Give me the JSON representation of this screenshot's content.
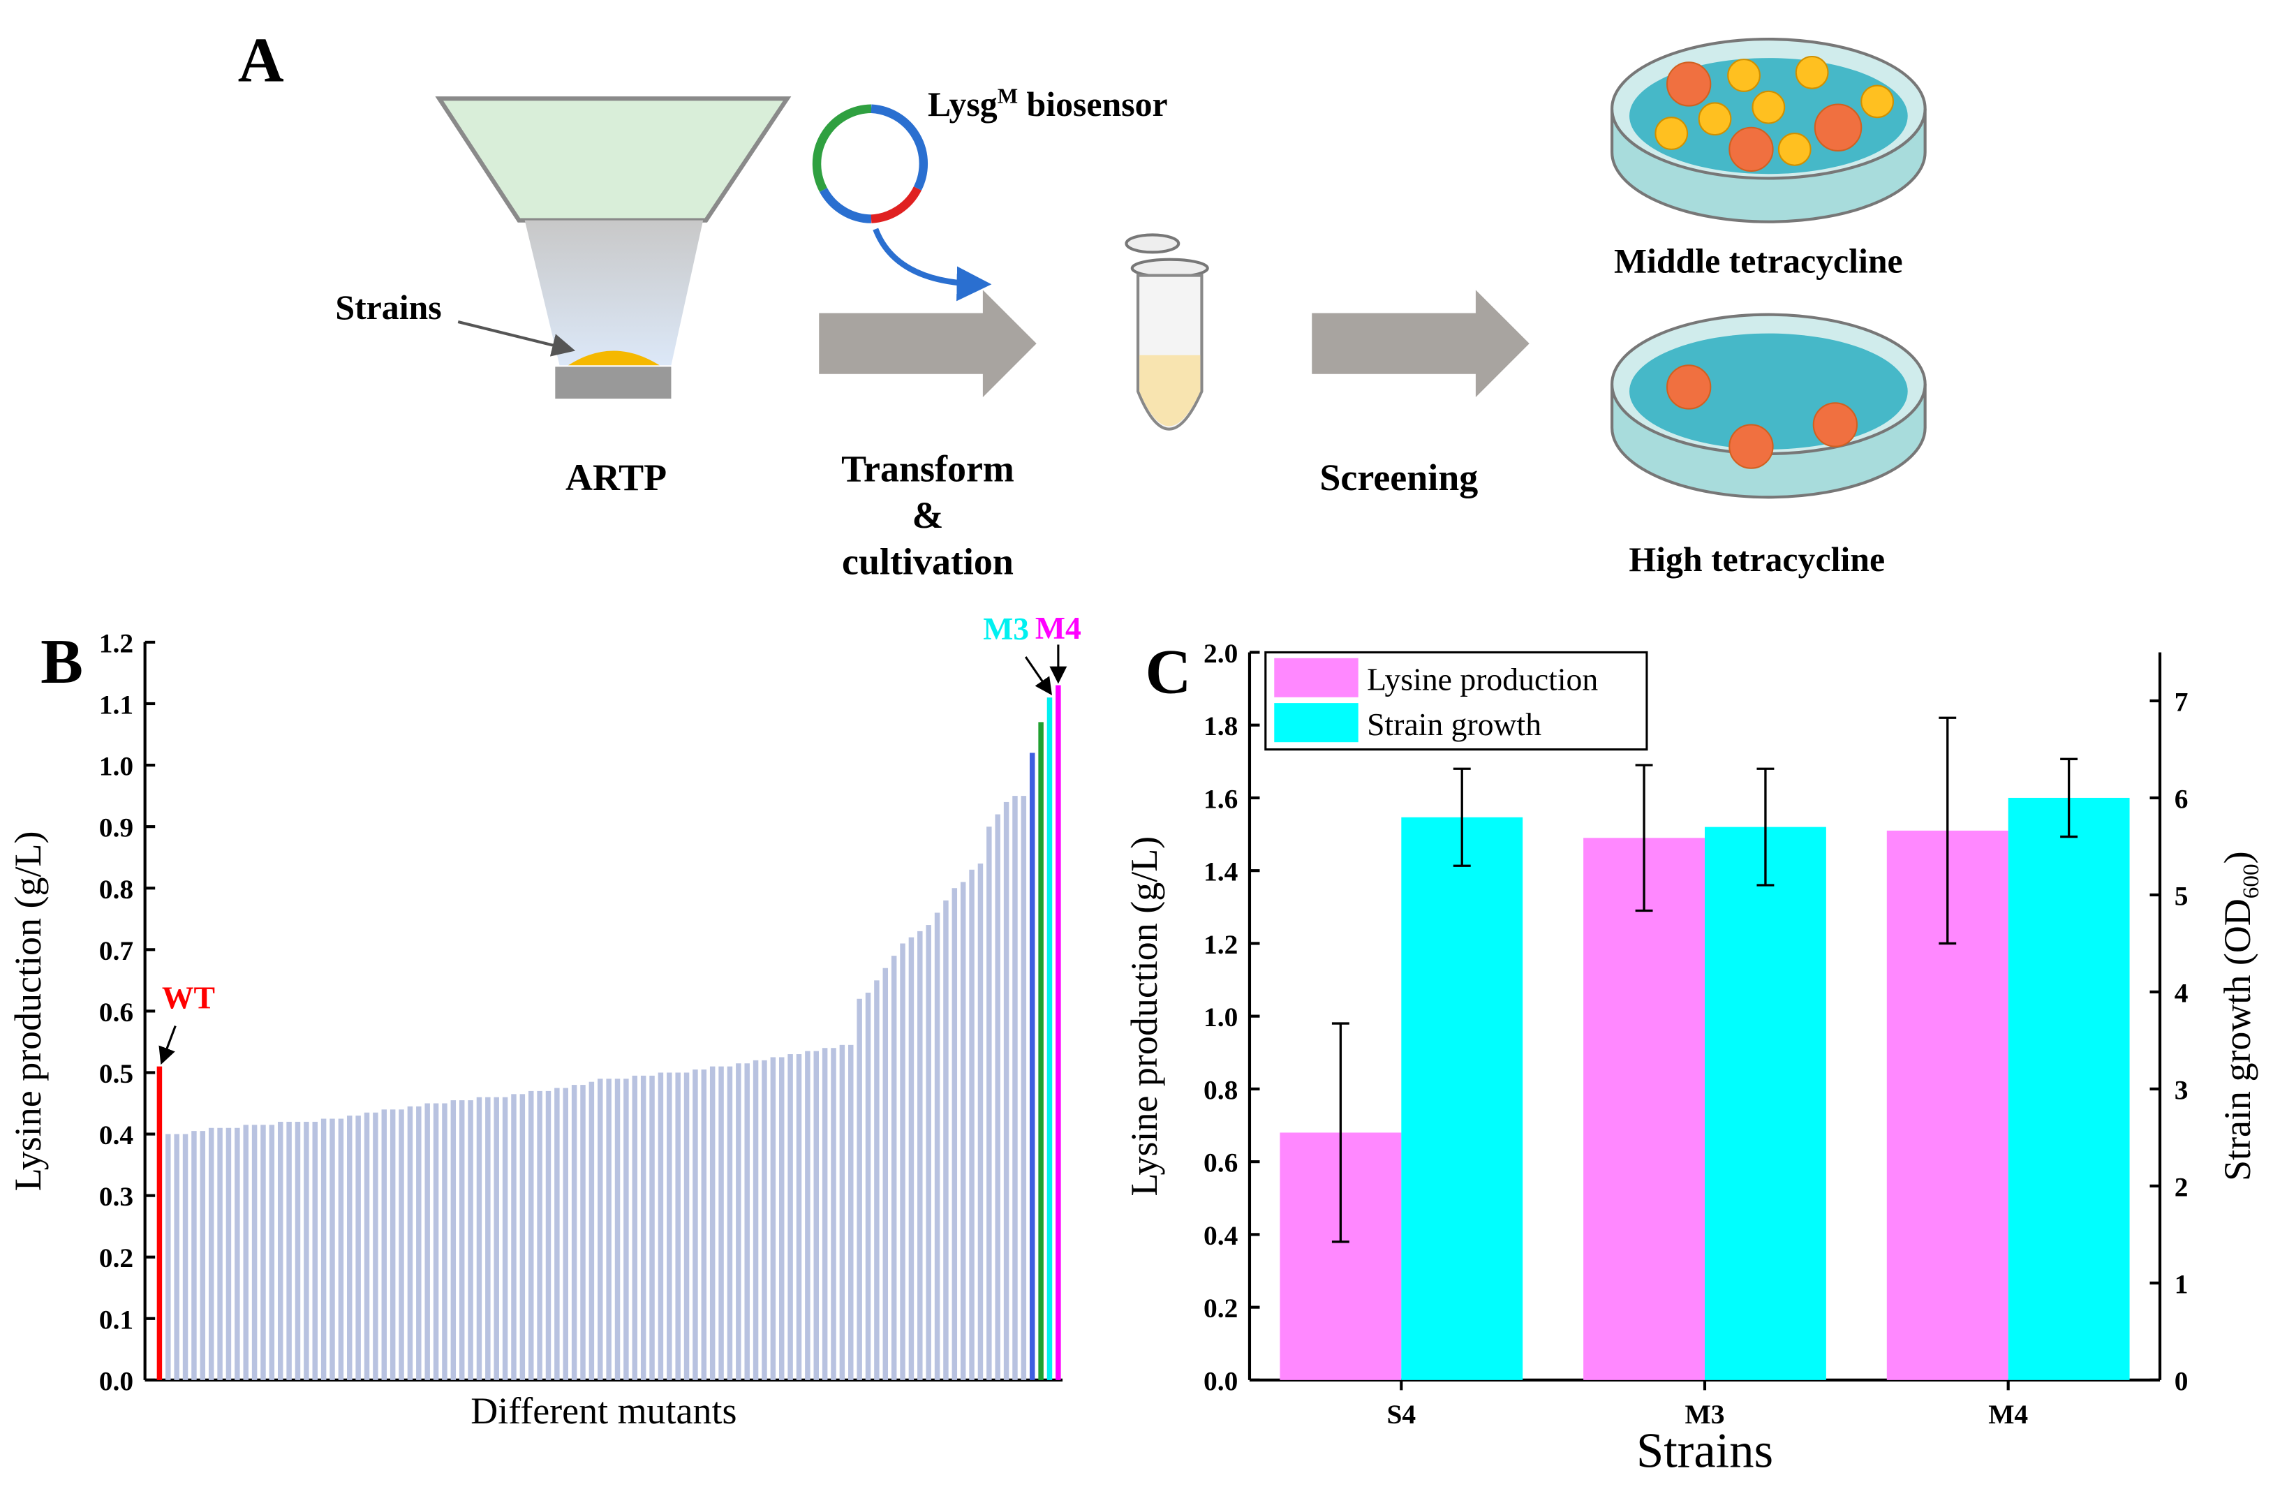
{
  "diagram": {
    "panel": "A",
    "strains_label": "Strains",
    "artp_label": "ARTP",
    "plasmid_label": [
      "Lysg",
      "M",
      " biosensor"
    ],
    "transform_label": [
      "Transform",
      "&",
      "cultivation"
    ],
    "screening_label": "Screening",
    "middle_label": "Middle tetracycline",
    "high_label": "High tetracycline"
  },
  "chart_data": [
    {
      "type": "bar",
      "panel": "B",
      "ylabel": "Lysine production (g/L)",
      "xlabel": "Different mutants",
      "categories": [
        "WT",
        null,
        null,
        null,
        null,
        null,
        null,
        null,
        null,
        null,
        null,
        null,
        null,
        null,
        null,
        null,
        null,
        null,
        null,
        null,
        null,
        null,
        null,
        null,
        null,
        null,
        null,
        null,
        null,
        null,
        null,
        null,
        null,
        null,
        null,
        null,
        null,
        null,
        null,
        null,
        null,
        null,
        null,
        null,
        null,
        null,
        null,
        null,
        null,
        null,
        null,
        null,
        null,
        null,
        null,
        null,
        null,
        null,
        null,
        null,
        null,
        null,
        null,
        null,
        null,
        null,
        null,
        null,
        null,
        null,
        null,
        null,
        null,
        null,
        null,
        null,
        null,
        null,
        null,
        null,
        null,
        null,
        null,
        null,
        null,
        null,
        null,
        null,
        null,
        null,
        null,
        null,
        null,
        null,
        null,
        null,
        null,
        null,
        null,
        null,
        null,
        null,
        null,
        "M3",
        "M4"
      ],
      "values": [
        0.51,
        0.4,
        0.4,
        0.4,
        0.405,
        0.405,
        0.41,
        0.41,
        0.41,
        0.41,
        0.415,
        0.415,
        0.415,
        0.415,
        0.42,
        0.42,
        0.42,
        0.42,
        0.42,
        0.425,
        0.425,
        0.425,
        0.43,
        0.43,
        0.435,
        0.435,
        0.44,
        0.44,
        0.44,
        0.445,
        0.445,
        0.45,
        0.45,
        0.45,
        0.455,
        0.455,
        0.455,
        0.46,
        0.46,
        0.46,
        0.46,
        0.465,
        0.465,
        0.47,
        0.47,
        0.47,
        0.475,
        0.475,
        0.48,
        0.48,
        0.485,
        0.49,
        0.49,
        0.49,
        0.49,
        0.495,
        0.495,
        0.495,
        0.5,
        0.5,
        0.5,
        0.5,
        0.505,
        0.505,
        0.51,
        0.51,
        0.51,
        0.515,
        0.515,
        0.52,
        0.52,
        0.525,
        0.525,
        0.53,
        0.53,
        0.535,
        0.535,
        0.54,
        0.54,
        0.545,
        0.545,
        0.62,
        0.63,
        0.65,
        0.67,
        0.69,
        0.71,
        0.72,
        0.73,
        0.74,
        0.76,
        0.78,
        0.8,
        0.81,
        0.83,
        0.84,
        0.9,
        0.92,
        0.94,
        0.95,
        0.95,
        1.02,
        1.07,
        1.11,
        1.13
      ],
      "colors": [
        "#ff0000",
        "#b8c2e0",
        "#b8c2e0",
        "#b8c2e0",
        "#b8c2e0",
        "#b8c2e0",
        "#b8c2e0",
        "#b8c2e0",
        "#b8c2e0",
        "#b8c2e0",
        "#b8c2e0",
        "#b8c2e0",
        "#b8c2e0",
        "#b8c2e0",
        "#b8c2e0",
        "#b8c2e0",
        "#b8c2e0",
        "#b8c2e0",
        "#b8c2e0",
        "#b8c2e0",
        "#b8c2e0",
        "#b8c2e0",
        "#b8c2e0",
        "#b8c2e0",
        "#b8c2e0",
        "#b8c2e0",
        "#b8c2e0",
        "#b8c2e0",
        "#b8c2e0",
        "#b8c2e0",
        "#b8c2e0",
        "#b8c2e0",
        "#b8c2e0",
        "#b8c2e0",
        "#b8c2e0",
        "#b8c2e0",
        "#b8c2e0",
        "#b8c2e0",
        "#b8c2e0",
        "#b8c2e0",
        "#b8c2e0",
        "#b8c2e0",
        "#b8c2e0",
        "#b8c2e0",
        "#b8c2e0",
        "#b8c2e0",
        "#b8c2e0",
        "#b8c2e0",
        "#b8c2e0",
        "#b8c2e0",
        "#b8c2e0",
        "#b8c2e0",
        "#b8c2e0",
        "#b8c2e0",
        "#b8c2e0",
        "#b8c2e0",
        "#b8c2e0",
        "#b8c2e0",
        "#b8c2e0",
        "#b8c2e0",
        "#b8c2e0",
        "#b8c2e0",
        "#b8c2e0",
        "#b8c2e0",
        "#b8c2e0",
        "#b8c2e0",
        "#b8c2e0",
        "#b8c2e0",
        "#b8c2e0",
        "#b8c2e0",
        "#b8c2e0",
        "#b8c2e0",
        "#b8c2e0",
        "#b8c2e0",
        "#b8c2e0",
        "#b8c2e0",
        "#b8c2e0",
        "#b8c2e0",
        "#b8c2e0",
        "#b8c2e0",
        "#b8c2e0",
        "#b8c2e0",
        "#b8c2e0",
        "#b8c2e0",
        "#b8c2e0",
        "#b8c2e0",
        "#b8c2e0",
        "#b8c2e0",
        "#b8c2e0",
        "#b8c2e0",
        "#b8c2e0",
        "#b8c2e0",
        "#b8c2e0",
        "#b8c2e0",
        "#b8c2e0",
        "#b8c2e0",
        "#b8c2e0",
        "#b8c2e0",
        "#b8c2e0",
        "#b8c2e0",
        "#b8c2e0",
        "#3f5fe0",
        "#1fa030",
        "#00f0f0",
        "#ff00ff"
      ],
      "ylim": [
        0,
        1.2
      ],
      "yticks": [
        {
          "value": 0,
          "label": "0.0"
        },
        0.1,
        0.2,
        0.3,
        0.4,
        0.5,
        0.6,
        0.7,
        0.8,
        0.9,
        {
          "value": 1,
          "label": "1.0"
        },
        1.1,
        1.2
      ]
    },
    {
      "type": "bar",
      "panel": "C",
      "ylabel": "Lysine production (g/L)",
      "y2label": [
        "Strain growth (OD",
        "600",
        ")"
      ],
      "xlabel": "Strains",
      "categories": [
        "S4",
        "M3",
        "M4"
      ],
      "series": [
        {
          "name": "Lysine production",
          "color": "#ff88ff",
          "values": [
            0.68,
            1.49,
            1.51
          ],
          "error": [
            0.3,
            0.2,
            0.31
          ]
        },
        {
          "name": "Strain growth",
          "color": "#00ffff",
          "values": [
            5.8,
            5.7,
            6.0
          ],
          "error": [
            0.5,
            0.6,
            0.4
          ],
          "axis": "y2"
        }
      ],
      "ylim": [
        0,
        2
      ],
      "yticks": [
        {
          "value": 0,
          "label": "0.0"
        },
        0.2,
        0.4,
        0.6,
        0.8,
        {
          "value": 1,
          "label": "1.0"
        },
        1.2,
        1.4,
        1.6,
        1.8,
        {
          "value": 2,
          "label": "2.0"
        }
      ],
      "y2lim": [
        0,
        7.5
      ],
      "y2ticks": [
        0,
        1,
        2,
        3,
        4,
        5,
        6,
        7
      ],
      "legend": "upper left"
    }
  ]
}
